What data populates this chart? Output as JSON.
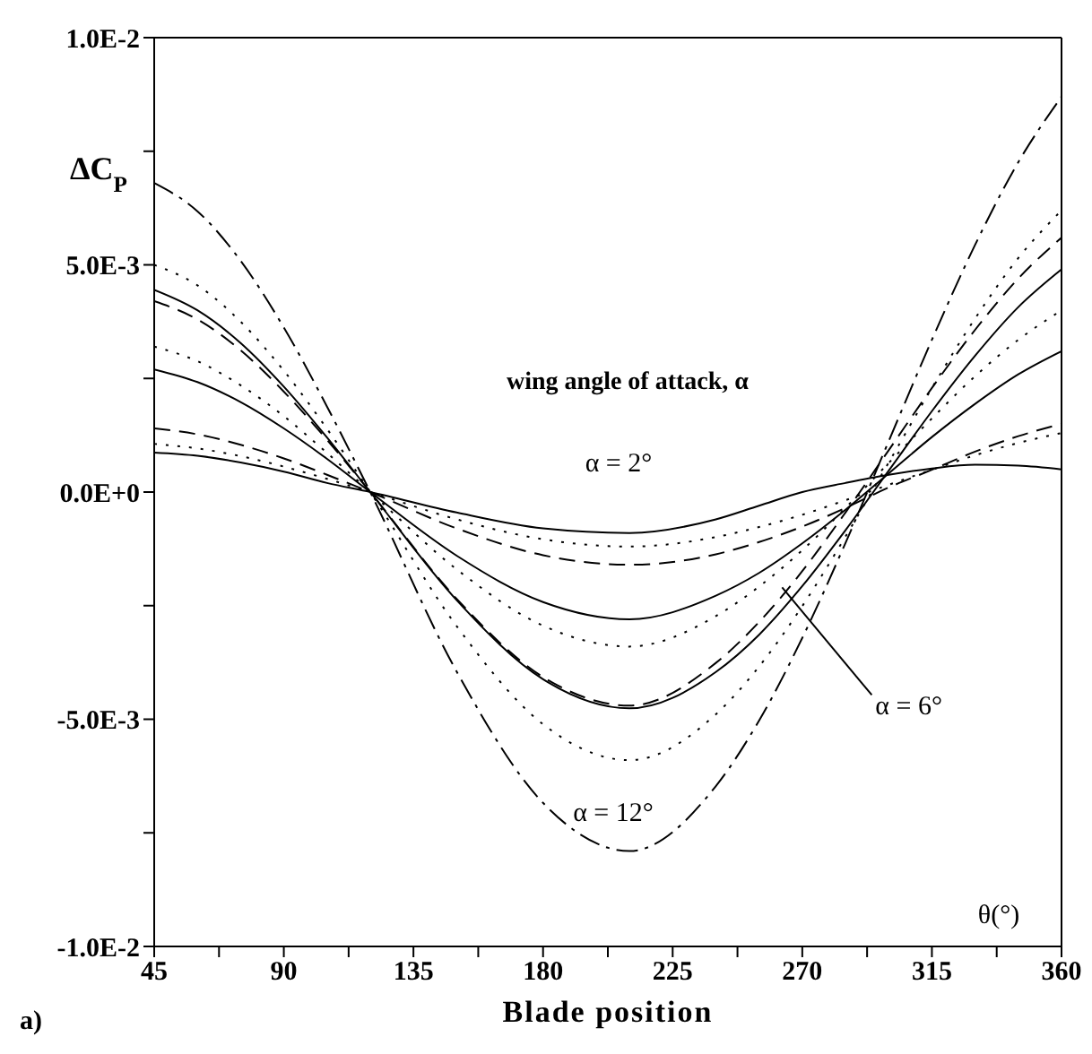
{
  "chart_data": {
    "type": "line",
    "xlabel": "Blade position",
    "ylabel": "ΔC$_{P}$",
    "x": [
      45,
      60,
      75,
      90,
      105,
      120,
      150,
      180,
      210,
      240,
      255,
      270,
      285,
      300,
      315,
      330,
      345,
      360
    ],
    "series": [
      {
        "color": "#000000",
        "line_style": "solid",
        "values": [
          0.00087,
          0.0008,
          0.00065,
          0.00045,
          0.0002,
          0,
          -0.00045,
          -0.0008,
          -0.0009,
          -0.0006,
          -0.0003,
          0,
          0.0002,
          0.00038,
          0.00052,
          0.0006,
          0.00058,
          0.0005
        ]
      },
      {
        "color": "#000000",
        "line_style": "dotted",
        "values": [
          0.00106,
          0.00096,
          0.00079,
          0.00056,
          0.00029,
          0,
          -0.0006,
          -0.00104,
          -0.0012,
          -0.00099,
          -0.00077,
          -0.0005,
          -0.00018,
          0.00016,
          0.00049,
          0.00081,
          0.00108,
          0.0013
        ]
      },
      {
        "color": "#000000",
        "line_style": "dashed",
        "values": [
          0.0014,
          0.00127,
          0.00104,
          0.00074,
          0.00038,
          0,
          -0.0008,
          -0.00139,
          -0.0016,
          -0.00137,
          -0.0011,
          -0.00076,
          -0.00035,
          0.0001,
          0.00049,
          0.00089,
          0.00123,
          0.0015
        ]
      },
      {
        "color": "#000000",
        "line_style": "solid",
        "values": [
          0.0027,
          0.00242,
          0.00198,
          0.0014,
          0.00073,
          0,
          -0.0014,
          -0.00242,
          -0.0028,
          -0.00228,
          -0.00178,
          -0.00113,
          -0.00039,
          0.00041,
          0.00121,
          0.00194,
          0.00259,
          0.0031
        ]
      },
      {
        "color": "#000000",
        "line_style": "dotted",
        "values": [
          0.0032,
          0.00288,
          0.00235,
          0.00167,
          0.00086,
          0,
          -0.0017,
          -0.00294,
          -0.0034,
          -0.00273,
          -0.00208,
          -0.00128,
          -0.00035,
          0.00064,
          0.00162,
          0.00255,
          0.00335,
          0.004
        ]
      },
      {
        "color": "#000000",
        "line_style": "dashed",
        "values": [
          0.0042,
          0.0038,
          0.00312,
          0.00221,
          0.00115,
          0,
          -0.00235,
          -0.00407,
          -0.0047,
          -0.00376,
          -0.00286,
          -0.00174,
          -0.00045,
          0.00092,
          0.00229,
          0.00357,
          0.0047,
          0.0056
        ]
      },
      {
        "color": "#000000",
        "line_style": "solid",
        "values": [
          0.00445,
          0.004,
          0.00328,
          0.00232,
          0.0012,
          0,
          -0.00238,
          -0.00412,
          -0.00476,
          -0.00396,
          -0.00314,
          -0.00207,
          -0.00084,
          0.00047,
          0.00178,
          0.003,
          0.00407,
          0.0049
        ]
      },
      {
        "color": "#000000",
        "line_style": "dotted",
        "values": [
          0.005,
          0.00455,
          0.00375,
          0.00267,
          0.00139,
          0,
          -0.00295,
          -0.00511,
          -0.0059,
          -0.00489,
          -0.00384,
          -0.00251,
          -0.00098,
          0.00065,
          0.00229,
          0.00382,
          0.00515,
          0.0062
        ]
      },
      {
        "color": "#000000",
        "line_style": "dashdot",
        "values": [
          0.0068,
          0.00618,
          0.00509,
          0.00362,
          0.00188,
          0,
          -0.00395,
          -0.00684,
          -0.0079,
          -0.00647,
          -0.00503,
          -0.00321,
          -0.00112,
          0.00112,
          0.00335,
          0.00544,
          0.00726,
          0.0087
        ]
      }
    ],
    "xlim": [
      45,
      360
    ],
    "xticks": [
      45,
      {
        "value": 67.5,
        "label": null
      },
      90,
      {
        "value": 112.5,
        "label": null
      },
      135,
      {
        "value": 157.5,
        "label": null
      },
      180,
      {
        "value": 202.5,
        "label": null
      },
      225,
      {
        "value": 247.5,
        "label": null
      },
      270,
      {
        "value": 292.5,
        "label": null
      },
      315,
      {
        "value": 337.5,
        "label": null
      },
      360
    ],
    "ylim": [
      -0.01,
      0.01
    ],
    "yticks": [
      {
        "value": -0.01,
        "label": "-1.0E-2"
      },
      {
        "value": -0.0075,
        "label": null
      },
      {
        "value": -0.005,
        "label": "-5.0E-3"
      },
      {
        "value": -0.0025,
        "label": null
      },
      {
        "value": 0,
        "label": "0.0E+0"
      },
      {
        "value": 0.0025,
        "label": null
      },
      {
        "value": 0.005,
        "label": "5.0E-3"
      },
      {
        "value": 0.0075,
        "label": null
      },
      {
        "value": 0.01,
        "label": "1.0E-2"
      }
    ],
    "annotations": [
      "wing angle of attack, α",
      "α = 2°",
      {
        "text": "α = 6°",
        "x": 263,
        "y": -0.0021
      },
      "α = 12°",
      "θ(°)",
      "a)"
    ]
  }
}
